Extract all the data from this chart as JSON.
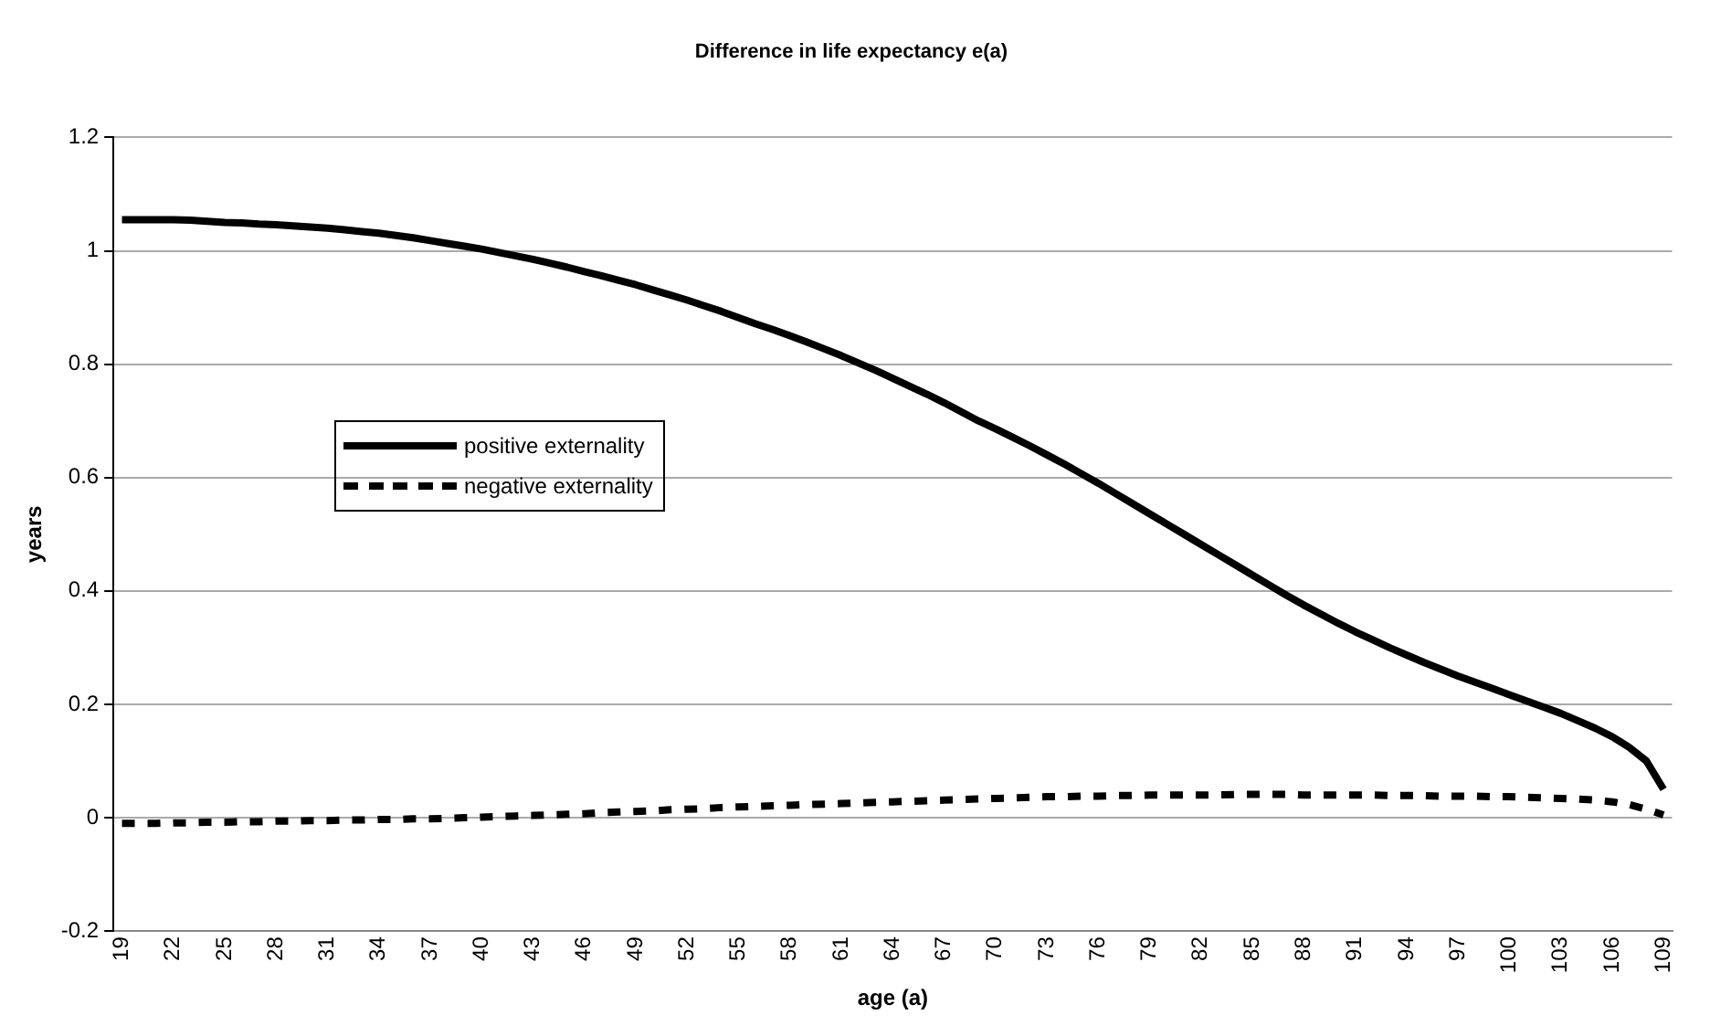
{
  "chart_data": {
    "type": "line",
    "title": "Difference in life expectancy e(a)",
    "xlabel": "age (a)",
    "ylabel": "years",
    "categories": [
      "19",
      null,
      null,
      "22",
      null,
      null,
      "25",
      null,
      null,
      "28",
      null,
      null,
      "31",
      null,
      null,
      "34",
      null,
      null,
      "37",
      null,
      null,
      "40",
      null,
      null,
      "43",
      null,
      null,
      "46",
      null,
      null,
      "49",
      null,
      null,
      "52",
      null,
      null,
      "55",
      null,
      null,
      "58",
      null,
      null,
      "61",
      null,
      null,
      "64",
      null,
      null,
      "67",
      null,
      null,
      "70",
      null,
      null,
      "73",
      null,
      null,
      "76",
      null,
      null,
      "79",
      null,
      null,
      "82",
      null,
      null,
      "85",
      null,
      null,
      "88",
      null,
      null,
      "91",
      null,
      null,
      "94",
      null,
      null,
      "97",
      null,
      null,
      "100",
      null,
      null,
      "103",
      null,
      null,
      "106",
      null,
      null,
      "109"
    ],
    "series": [
      {
        "name": "positive externality",
        "color": "#000000",
        "line_style": "solid",
        "values": [
          1.055,
          1.055,
          1.055,
          1.055,
          1.054,
          1.052,
          1.05,
          1.049,
          1.047,
          1.046,
          1.044,
          1.042,
          1.04,
          1.037,
          1.034,
          1.031,
          1.027,
          1.023,
          1.018,
          1.013,
          1.008,
          1.003,
          0.997,
          0.991,
          0.985,
          0.978,
          0.971,
          0.963,
          0.956,
          0.948,
          0.94,
          0.931,
          0.922,
          0.913,
          0.903,
          0.893,
          0.882,
          0.871,
          0.861,
          0.85,
          0.839,
          0.827,
          0.815,
          0.802,
          0.789,
          0.775,
          0.761,
          0.747,
          0.732,
          0.716,
          0.7,
          0.686,
          0.671,
          0.656,
          0.64,
          0.624,
          0.607,
          0.59,
          0.572,
          0.554,
          0.536,
          0.518,
          0.5,
          0.482,
          0.464,
          0.446,
          0.428,
          0.41,
          0.392,
          0.375,
          0.359,
          0.343,
          0.328,
          0.314,
          0.3,
          0.287,
          0.274,
          0.262,
          0.25,
          0.239,
          0.228,
          0.217,
          0.206,
          0.195,
          0.184,
          0.171,
          0.158,
          0.143,
          0.124,
          0.1,
          0.05
        ]
      },
      {
        "name": "negative externality",
        "color": "#000000",
        "line_style": "dashed",
        "values": [
          -0.01,
          -0.01,
          -0.01,
          -0.009,
          -0.009,
          -0.008,
          -0.008,
          -0.007,
          -0.007,
          -0.006,
          -0.006,
          -0.005,
          -0.005,
          -0.004,
          -0.004,
          -0.003,
          -0.003,
          -0.002,
          -0.002,
          -0.001,
          0,
          0.001,
          0.002,
          0.003,
          0.004,
          0.005,
          0.006,
          0.007,
          0.009,
          0.01,
          0.011,
          0.012,
          0.014,
          0.015,
          0.016,
          0.018,
          0.019,
          0.02,
          0.021,
          0.022,
          0.023,
          0.024,
          0.025,
          0.026,
          0.027,
          0.028,
          0.029,
          0.03,
          0.031,
          0.032,
          0.033,
          0.034,
          0.035,
          0.036,
          0.037,
          0.037,
          0.038,
          0.038,
          0.039,
          0.039,
          0.04,
          0.04,
          0.04,
          0.04,
          0.04,
          0.041,
          0.041,
          0.041,
          0.041,
          0.04,
          0.04,
          0.04,
          0.04,
          0.04,
          0.039,
          0.039,
          0.039,
          0.038,
          0.038,
          0.038,
          0.037,
          0.037,
          0.036,
          0.035,
          0.034,
          0.033,
          0.031,
          0.028,
          0.023,
          0.015,
          0.005
        ]
      }
    ],
    "ylim": [
      -0.2,
      1.2
    ],
    "yticks": [
      -0.2,
      0,
      0.2,
      0.4,
      0.6,
      0.8,
      1,
      1.2
    ],
    "grid": "y",
    "legend": "left",
    "marker": "none"
  }
}
